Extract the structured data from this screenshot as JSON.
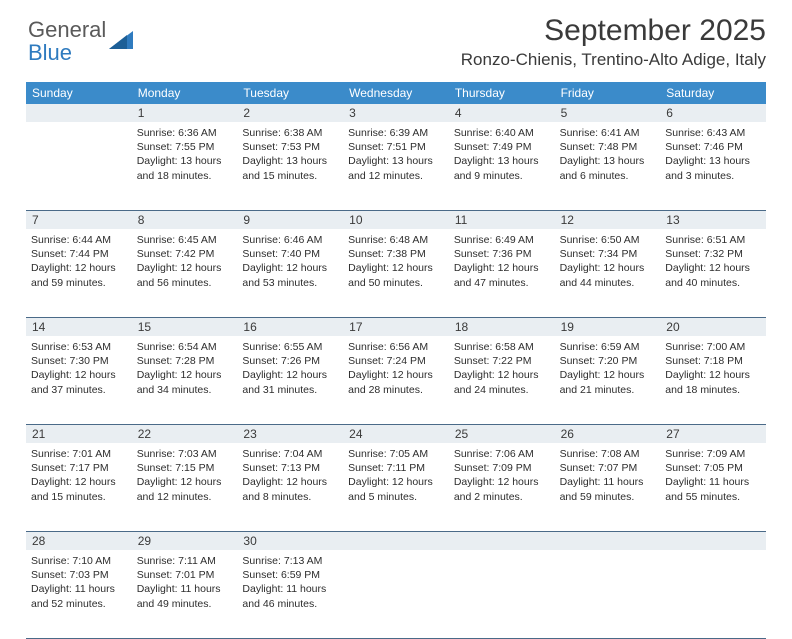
{
  "brand": {
    "top": "General",
    "bottom": "Blue"
  },
  "title": "September 2025",
  "location": "Ronzo-Chienis, Trentino-Alto Adige, Italy",
  "colors": {
    "header_bar": "#3b8bca",
    "daynum_bg": "#e9eef2",
    "week_border": "#4a6a88",
    "brand_blue": "#2f7bbf",
    "text": "#3a3a3a"
  },
  "dow": [
    "Sunday",
    "Monday",
    "Tuesday",
    "Wednesday",
    "Thursday",
    "Friday",
    "Saturday"
  ],
  "label_sunrise": "Sunrise:",
  "label_sunset": "Sunset:",
  "label_daylight": "Daylight:",
  "weeks": [
    [
      null,
      {
        "n": "1",
        "sr": "6:36 AM",
        "ss": "7:55 PM",
        "dl": "13 hours and 18 minutes."
      },
      {
        "n": "2",
        "sr": "6:38 AM",
        "ss": "7:53 PM",
        "dl": "13 hours and 15 minutes."
      },
      {
        "n": "3",
        "sr": "6:39 AM",
        "ss": "7:51 PM",
        "dl": "13 hours and 12 minutes."
      },
      {
        "n": "4",
        "sr": "6:40 AM",
        "ss": "7:49 PM",
        "dl": "13 hours and 9 minutes."
      },
      {
        "n": "5",
        "sr": "6:41 AM",
        "ss": "7:48 PM",
        "dl": "13 hours and 6 minutes."
      },
      {
        "n": "6",
        "sr": "6:43 AM",
        "ss": "7:46 PM",
        "dl": "13 hours and 3 minutes."
      }
    ],
    [
      {
        "n": "7",
        "sr": "6:44 AM",
        "ss": "7:44 PM",
        "dl": "12 hours and 59 minutes."
      },
      {
        "n": "8",
        "sr": "6:45 AM",
        "ss": "7:42 PM",
        "dl": "12 hours and 56 minutes."
      },
      {
        "n": "9",
        "sr": "6:46 AM",
        "ss": "7:40 PM",
        "dl": "12 hours and 53 minutes."
      },
      {
        "n": "10",
        "sr": "6:48 AM",
        "ss": "7:38 PM",
        "dl": "12 hours and 50 minutes."
      },
      {
        "n": "11",
        "sr": "6:49 AM",
        "ss": "7:36 PM",
        "dl": "12 hours and 47 minutes."
      },
      {
        "n": "12",
        "sr": "6:50 AM",
        "ss": "7:34 PM",
        "dl": "12 hours and 44 minutes."
      },
      {
        "n": "13",
        "sr": "6:51 AM",
        "ss": "7:32 PM",
        "dl": "12 hours and 40 minutes."
      }
    ],
    [
      {
        "n": "14",
        "sr": "6:53 AM",
        "ss": "7:30 PM",
        "dl": "12 hours and 37 minutes."
      },
      {
        "n": "15",
        "sr": "6:54 AM",
        "ss": "7:28 PM",
        "dl": "12 hours and 34 minutes."
      },
      {
        "n": "16",
        "sr": "6:55 AM",
        "ss": "7:26 PM",
        "dl": "12 hours and 31 minutes."
      },
      {
        "n": "17",
        "sr": "6:56 AM",
        "ss": "7:24 PM",
        "dl": "12 hours and 28 minutes."
      },
      {
        "n": "18",
        "sr": "6:58 AM",
        "ss": "7:22 PM",
        "dl": "12 hours and 24 minutes."
      },
      {
        "n": "19",
        "sr": "6:59 AM",
        "ss": "7:20 PM",
        "dl": "12 hours and 21 minutes."
      },
      {
        "n": "20",
        "sr": "7:00 AM",
        "ss": "7:18 PM",
        "dl": "12 hours and 18 minutes."
      }
    ],
    [
      {
        "n": "21",
        "sr": "7:01 AM",
        "ss": "7:17 PM",
        "dl": "12 hours and 15 minutes."
      },
      {
        "n": "22",
        "sr": "7:03 AM",
        "ss": "7:15 PM",
        "dl": "12 hours and 12 minutes."
      },
      {
        "n": "23",
        "sr": "7:04 AM",
        "ss": "7:13 PM",
        "dl": "12 hours and 8 minutes."
      },
      {
        "n": "24",
        "sr": "7:05 AM",
        "ss": "7:11 PM",
        "dl": "12 hours and 5 minutes."
      },
      {
        "n": "25",
        "sr": "7:06 AM",
        "ss": "7:09 PM",
        "dl": "12 hours and 2 minutes."
      },
      {
        "n": "26",
        "sr": "7:08 AM",
        "ss": "7:07 PM",
        "dl": "11 hours and 59 minutes."
      },
      {
        "n": "27",
        "sr": "7:09 AM",
        "ss": "7:05 PM",
        "dl": "11 hours and 55 minutes."
      }
    ],
    [
      {
        "n": "28",
        "sr": "7:10 AM",
        "ss": "7:03 PM",
        "dl": "11 hours and 52 minutes."
      },
      {
        "n": "29",
        "sr": "7:11 AM",
        "ss": "7:01 PM",
        "dl": "11 hours and 49 minutes."
      },
      {
        "n": "30",
        "sr": "7:13 AM",
        "ss": "6:59 PM",
        "dl": "11 hours and 46 minutes."
      },
      null,
      null,
      null,
      null
    ]
  ]
}
